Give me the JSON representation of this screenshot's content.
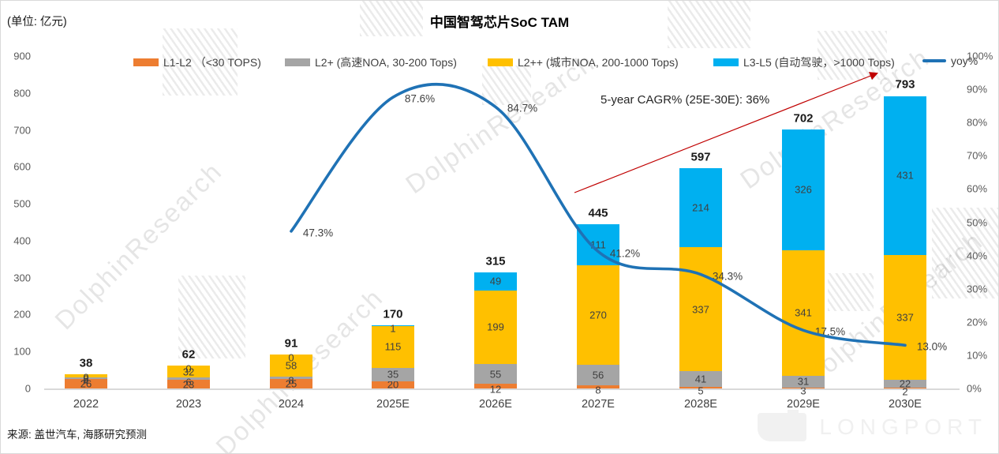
{
  "header": {
    "unit_label": "(单位: 亿元)",
    "title": "中国智驾芯片SoC TAM"
  },
  "legend": {
    "items": [
      {
        "label": "L1-L2 （<30 TOPS)",
        "type": "box",
        "color": "#ED7D31"
      },
      {
        "label": "L2+ (高速NOA, 30-200 Tops)",
        "type": "box",
        "color": "#A5A5A5"
      },
      {
        "label": "L2++ (城市NOA, 200-1000 Tops)",
        "type": "box",
        "color": "#FFC000"
      },
      {
        "label": "L3-L5 (自动驾驶，>1000 Tops)",
        "type": "box",
        "color": "#00B0F0"
      },
      {
        "label": "yoy%",
        "type": "line",
        "color": "#1F72B5"
      }
    ]
  },
  "annotation": {
    "cagr_text": "5-year CAGR% (25E-30E): 36%",
    "arrow_color": "#C00000"
  },
  "footer": {
    "source": "来源: 盖世汽车, 海豚研究预测",
    "logo_text": "LONGPORT"
  },
  "watermark_text": "DolphinResearch",
  "chart_data": {
    "type": "bar",
    "subtype": "stacked-bar-with-line",
    "title": "中国智驾芯片SoC TAM",
    "unit": "亿元",
    "categories": [
      "2022",
      "2023",
      "2024",
      "2025E",
      "2026E",
      "2027E",
      "2028E",
      "2029E",
      "2030E"
    ],
    "series": [
      {
        "name": "L1-L2 （<30 TOPS)",
        "color": "#ED7D31",
        "values": [
          26,
          23,
          25,
          20,
          12,
          8,
          5,
          3,
          2
        ]
      },
      {
        "name": "L2+ (高速NOA, 30-200 Tops)",
        "color": "#A5A5A5",
        "values": [
          4,
          6,
          8,
          35,
          55,
          56,
          41,
          31,
          22
        ]
      },
      {
        "name": "L2++ (城市NOA, 200-1000 Tops)",
        "color": "#FFC000",
        "values": [
          8,
          32,
          58,
          115,
          199,
          270,
          337,
          341,
          337
        ]
      },
      {
        "name": "L3-L5 (自动驾驶，>1000 Tops)",
        "color": "#00B0F0",
        "values": [
          0,
          0,
          0,
          1,
          49,
          111,
          214,
          326,
          431
        ]
      }
    ],
    "totals": [
      38,
      62,
      91,
      170,
      315,
      445,
      597,
      702,
      793
    ],
    "line_series": {
      "name": "yoy%",
      "color": "#1F72B5",
      "start_category": "2024",
      "categories": [
        "2024",
        "2025E",
        "2026E",
        "2027E",
        "2028E",
        "2029E",
        "2030E"
      ],
      "values_pct": [
        47.3,
        87.6,
        84.7,
        41.2,
        34.3,
        17.5,
        13.0
      ],
      "labels": [
        "47.3%",
        "87.6%",
        "84.7%",
        "41.2%",
        "34.3%",
        "17.5%",
        "13.0%"
      ]
    },
    "axes": {
      "left_ticks": [
        900,
        800,
        700,
        600,
        500,
        400,
        300,
        200,
        100,
        0
      ],
      "left_range": [
        0,
        900
      ],
      "right_ticks": [
        "100%",
        "90%",
        "80%",
        "70%",
        "60%",
        "50%",
        "40%",
        "30%",
        "20%",
        "10%",
        "0%"
      ],
      "right_range_pct": [
        0,
        100
      ],
      "grid": "off",
      "legend_position": "top"
    }
  }
}
